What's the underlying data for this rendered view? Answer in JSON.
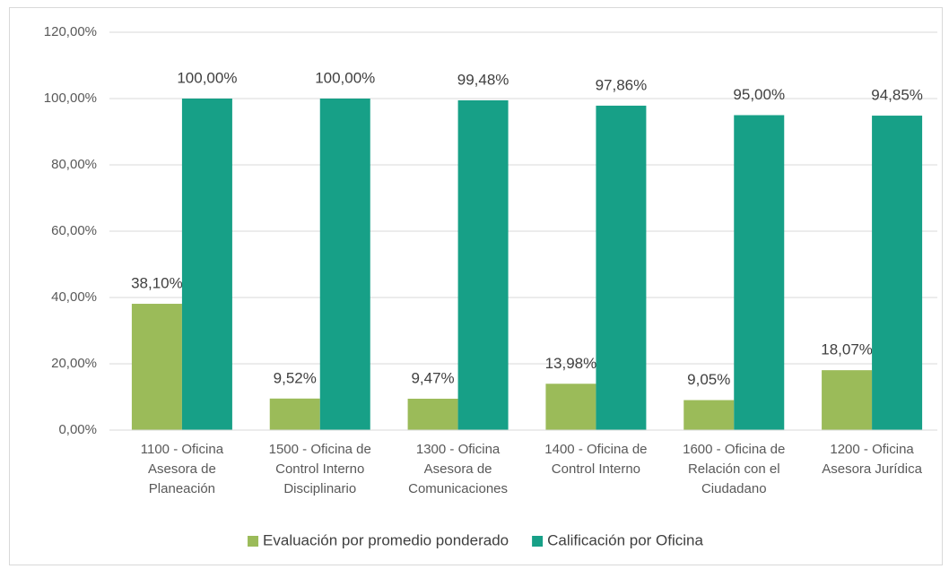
{
  "chart_data": {
    "type": "bar",
    "categories": [
      "1100 - Oficina Asesora de Planeación",
      "1500 - Oficina de Control Interno Disciplinario",
      "1300 - Oficina Asesora de Comunicaciones",
      "1400 - Oficina de Control Interno",
      "1600 - Oficina de Relación con el Ciudadano",
      "1200 - Oficina Asesora Jurídica"
    ],
    "series": [
      {
        "name": "Evaluación por promedio ponderado",
        "color": "#9bbb59",
        "values": [
          38.1,
          9.52,
          9.47,
          13.98,
          9.05,
          18.07
        ],
        "value_labels": [
          "38,10%",
          "9,52%",
          "9,47%",
          "13,98%",
          "9,05%",
          "18,07%"
        ]
      },
      {
        "name": "Calificación por Oficina",
        "color": "#17a087",
        "values": [
          100,
          100,
          99.48,
          97.86,
          95,
          94.85
        ],
        "value_labels": [
          "100,00%",
          "100,00%",
          "99,48%",
          "97,86%",
          "95,00%",
          "94,85%"
        ]
      }
    ],
    "ylim": [
      0,
      120
    ],
    "yticks": [
      {
        "value": 0,
        "label": "0,00%"
      },
      {
        "value": 20,
        "label": "20,00%"
      },
      {
        "value": 40,
        "label": "40,00%"
      },
      {
        "value": 60,
        "label": "60,00%"
      },
      {
        "value": 80,
        "label": "80,00%"
      },
      {
        "value": 100,
        "label": "100,00%"
      },
      {
        "value": 120,
        "label": "120,00%"
      }
    ],
    "grid": true,
    "legend": "bottom"
  }
}
